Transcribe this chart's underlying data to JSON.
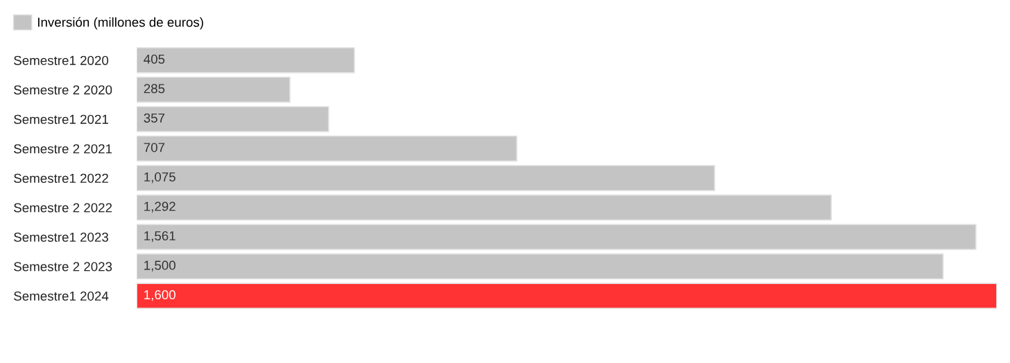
{
  "chart_data": {
    "type": "bar",
    "orientation": "horizontal",
    "categories": [
      "Semestre1 2020",
      "Semestre 2 2020",
      "Semestre1 2021",
      "Semestre 2 2021",
      "Semestre1 2022",
      "Semestre 2 2022",
      "Semestre1 2023",
      "Semestre 2 2023",
      "Semestre1 2024"
    ],
    "series": [
      {
        "name": "Inversión (millones de euros)",
        "color": "#c4c4c4",
        "values": [
          405,
          285,
          357,
          707,
          1075,
          1292,
          1561,
          1500,
          1600
        ],
        "colors": [
          "#c4c4c4",
          "#c4c4c4",
          "#c4c4c4",
          "#c4c4c4",
          "#c4c4c4",
          "#c4c4c4",
          "#c4c4c4",
          "#c4c4c4",
          "#ff3333"
        ],
        "value_labels": [
          "405",
          "285",
          "357",
          "707",
          "1,075",
          "1,292",
          "1,561",
          "1,500",
          "1,600"
        ]
      }
    ],
    "legend": "top left",
    "grid": false
  }
}
